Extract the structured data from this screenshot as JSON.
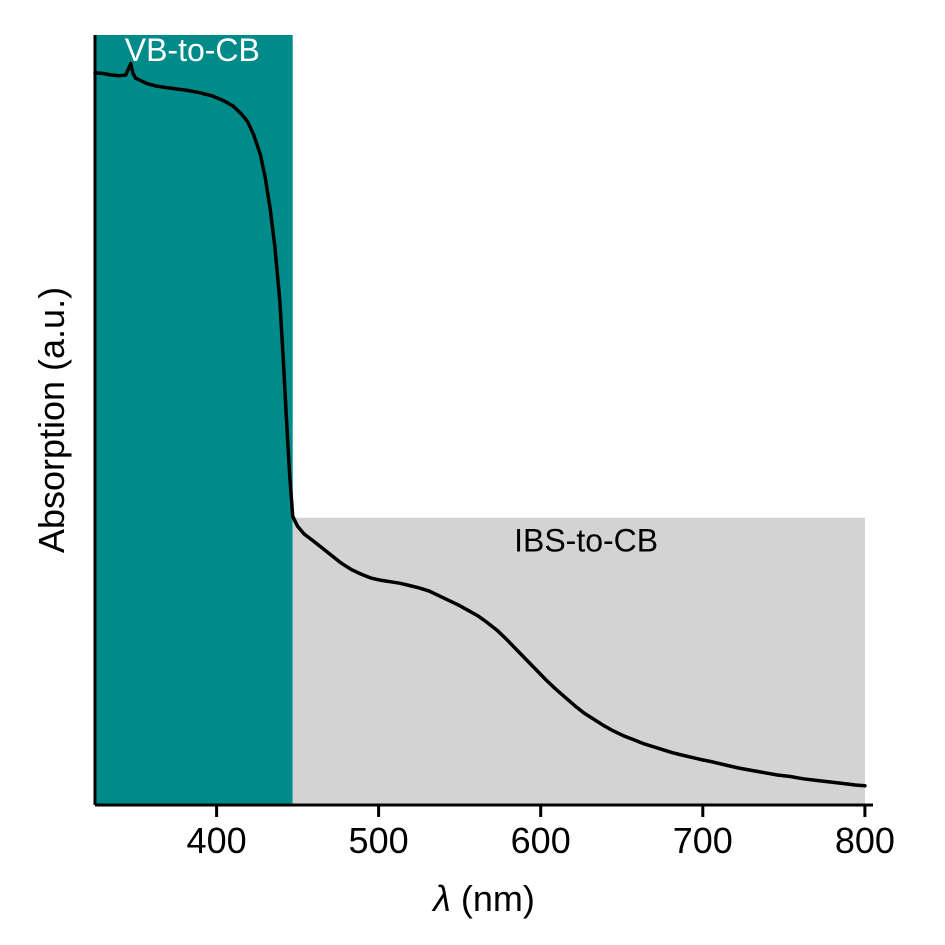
{
  "chart_data": {
    "type": "line",
    "title": "",
    "xlabel_symbol": "λ",
    "xlabel_unit": " (nm)",
    "ylabel": "Absorption (a.u.)",
    "xlim": [
      325,
      805
    ],
    "ylim": [
      0,
      1
    ],
    "x_ticks": [
      400,
      500,
      600,
      700,
      800
    ],
    "y_ticks": [],
    "grid": false,
    "legend": "none",
    "axis_color": "#000000",
    "background_color": "#ffffff",
    "line": {
      "name": "absorption-spectrum",
      "color": "#000000",
      "width": 3.5
    },
    "regions": [
      {
        "id": "vb-to-cb",
        "label": "VB-to-CB",
        "x0": 325,
        "x1": 447,
        "y0": 0,
        "y1": 1,
        "fill": "#008B8B",
        "label_color": "#FFFFFF",
        "label_x": 385,
        "label_y": 0.977
      },
      {
        "id": "ibs-to-cb",
        "label": "IBS-to-CB",
        "x0": 447,
        "x1": 800,
        "y0": 0,
        "y1": 0.373,
        "fill": "#D3D3D3",
        "label_color": "#000000",
        "label_x": 628,
        "label_y": 0.34
      }
    ],
    "series": [
      {
        "name": "absorption",
        "x": [
          325,
          330,
          335,
          340,
          344,
          347,
          348.5,
          350,
          353,
          357,
          362,
          368,
          375,
          382,
          390,
          397,
          404,
          410,
          415,
          419,
          423,
          427,
          430,
          433,
          436,
          439,
          441,
          443,
          445,
          447,
          450,
          454,
          459,
          465,
          471,
          477,
          483,
          489,
          495,
          501,
          507,
          513,
          519,
          525,
          531,
          537,
          543,
          549,
          555,
          561,
          567,
          573,
          579,
          585,
          591,
          597,
          603,
          609,
          615,
          621,
          627,
          633,
          639,
          645,
          651,
          657,
          663,
          669,
          675,
          681,
          687,
          693,
          699,
          706,
          714,
          722,
          730,
          738,
          746,
          754,
          762,
          770,
          778,
          786,
          794,
          800
        ],
        "y": [
          0.951,
          0.95,
          0.948,
          0.947,
          0.948,
          0.963,
          0.95,
          0.944,
          0.941,
          0.937,
          0.934,
          0.932,
          0.93,
          0.928,
          0.925,
          0.921,
          0.915,
          0.908,
          0.898,
          0.888,
          0.87,
          0.845,
          0.815,
          0.775,
          0.725,
          0.655,
          0.585,
          0.505,
          0.432,
          0.375,
          0.362,
          0.352,
          0.344,
          0.334,
          0.324,
          0.314,
          0.306,
          0.3,
          0.295,
          0.292,
          0.29,
          0.288,
          0.285,
          0.282,
          0.278,
          0.272,
          0.266,
          0.26,
          0.253,
          0.246,
          0.237,
          0.227,
          0.215,
          0.202,
          0.189,
          0.176,
          0.163,
          0.151,
          0.14,
          0.129,
          0.119,
          0.111,
          0.103,
          0.096,
          0.09,
          0.085,
          0.08,
          0.076,
          0.072,
          0.068,
          0.065,
          0.062,
          0.059,
          0.056,
          0.052,
          0.048,
          0.045,
          0.042,
          0.039,
          0.037,
          0.034,
          0.032,
          0.03,
          0.028,
          0.026,
          0.025
        ]
      }
    ]
  }
}
